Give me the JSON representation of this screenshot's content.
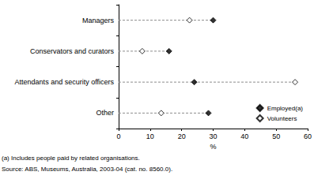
{
  "chart_data": {
    "type": "scatter",
    "orientation": "horizontal",
    "categories": [
      "Managers",
      "Conservators and curators",
      "Attendants and security officers",
      "Other"
    ],
    "series": [
      {
        "name": "Employed(a)",
        "color": "#000000",
        "marker": "diamond",
        "values": [
          30,
          16,
          24,
          28.5
        ]
      },
      {
        "name": "Volunteers",
        "color": "#000000",
        "marker": "diamond-open",
        "values": [
          22.5,
          7.5,
          56,
          13.5
        ]
      }
    ],
    "xlabel": "%",
    "xlim": [
      0,
      60
    ],
    "xticks": [
      0,
      10,
      20,
      30,
      40,
      50,
      60
    ],
    "legend": "lower right",
    "grid": false,
    "annotations": [
      "(a) Includes people paid by related organisations.",
      "Source: ABS, Museums, Australia, 2003-04 (cat. no. 8560.0)."
    ]
  }
}
